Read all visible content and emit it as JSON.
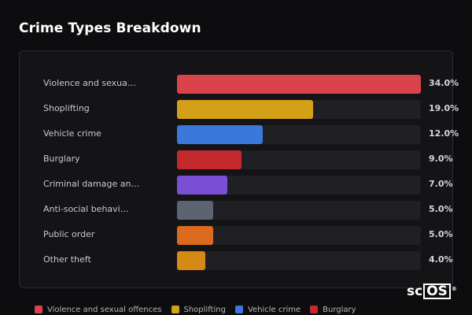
{
  "header": {
    "title": "Crime Types Breakdown"
  },
  "chart_data": {
    "type": "bar",
    "orientation": "horizontal",
    "title": "Crime Types Breakdown",
    "categories": [
      "Violence and sexua…",
      "Shoplifting",
      "Vehicle crime",
      "Burglary",
      "Criminal damage an…",
      "Anti-social behavi…",
      "Public order",
      "Other theft"
    ],
    "values": [
      34.0,
      19.0,
      12.0,
      9.0,
      7.0,
      5.0,
      5.0,
      4.0
    ],
    "value_labels": [
      "34.0%",
      "19.0%",
      "12.0%",
      "9.0%",
      "7.0%",
      "5.0%",
      "5.0%",
      "4.0%"
    ],
    "colors": [
      "#d9444a",
      "#d4a017",
      "#3b78db",
      "#c4292d",
      "#7a4fd6",
      "#5c6472",
      "#d96a1e",
      "#d48a14"
    ],
    "xlim": [
      0,
      34
    ],
    "legend_position": "bottom",
    "legend": [
      {
        "label": "Violence and sexual offences",
        "color": "#d9444a"
      },
      {
        "label": "Shoplifting",
        "color": "#d4a017"
      },
      {
        "label": "Vehicle crime",
        "color": "#3b78db"
      },
      {
        "label": "Burglary",
        "color": "#c4292d"
      }
    ]
  },
  "logo": {
    "text": "sc",
    "boxed": "OS",
    "mark": "®"
  }
}
